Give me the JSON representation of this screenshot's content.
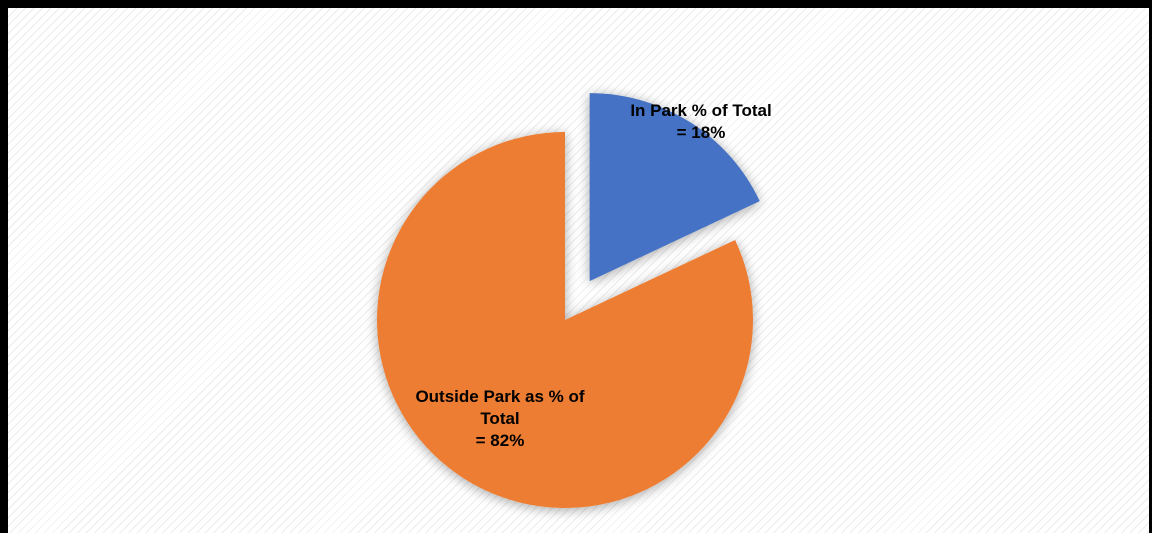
{
  "chart_data": {
    "type": "pie",
    "title": "",
    "slices": [
      {
        "label": "In Park % of Total",
        "value": 18,
        "value_text": "= 18%",
        "label_lines": [
          "In Park % of Total",
          "= 18%"
        ],
        "color": "#4472C4",
        "exploded": true
      },
      {
        "label": "Outside Park as % of Total",
        "value": 82,
        "value_text": "= 82%",
        "label_lines": [
          "Outside Park as % of",
          "Total",
          "= 82%"
        ],
        "color": "#ED7D31",
        "exploded": false
      }
    ],
    "start_angle": "12 o'clock",
    "direction": "clockwise",
    "legend": "none",
    "background": "light diagonal hatch"
  }
}
